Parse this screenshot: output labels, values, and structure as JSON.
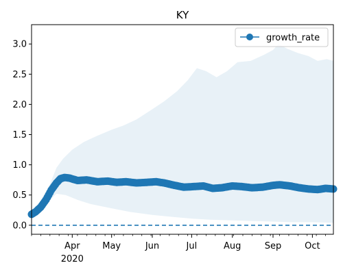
{
  "chart_data": {
    "type": "line",
    "title": "KY",
    "xlabel": "",
    "ylabel": "",
    "x_range": [
      "2020-03-01",
      "2020-10-17"
    ],
    "ylim": [
      -0.15,
      3.32
    ],
    "grid": false,
    "legend": {
      "location": "top-right",
      "entries": [
        "growth_rate"
      ]
    },
    "x_ticks": [
      {
        "date": "2020-04-01",
        "label": "Apr",
        "sublabel": "2020"
      },
      {
        "date": "2020-05-01",
        "label": "May",
        "sublabel": ""
      },
      {
        "date": "2020-06-01",
        "label": "Jun",
        "sublabel": ""
      },
      {
        "date": "2020-07-01",
        "label": "Jul",
        "sublabel": ""
      },
      {
        "date": "2020-08-01",
        "label": "Aug",
        "sublabel": ""
      },
      {
        "date": "2020-09-01",
        "label": "Sep",
        "sublabel": ""
      },
      {
        "date": "2020-10-01",
        "label": "Oct",
        "sublabel": ""
      }
    ],
    "y_ticks": [
      0.0,
      0.5,
      1.0,
      1.5,
      2.0,
      2.5,
      3.0
    ],
    "y_tick_labels": [
      "0.0",
      "0.5",
      "1.0",
      "1.5",
      "2.0",
      "2.5",
      "3.0"
    ],
    "reference_line": {
      "y": 0.0,
      "style": "dashed",
      "color": "#1f77b4"
    },
    "series": [
      {
        "name": "growth_rate",
        "color": "#1f77b4",
        "marker": "circle",
        "points": [
          [
            "2020-03-01",
            0.18
          ],
          [
            "2020-03-04",
            0.22
          ],
          [
            "2020-03-08",
            0.3
          ],
          [
            "2020-03-12",
            0.42
          ],
          [
            "2020-03-16",
            0.58
          ],
          [
            "2020-03-20",
            0.7
          ],
          [
            "2020-03-23",
            0.77
          ],
          [
            "2020-03-26",
            0.79
          ],
          [
            "2020-03-30",
            0.78
          ],
          [
            "2020-04-05",
            0.74
          ],
          [
            "2020-04-12",
            0.75
          ],
          [
            "2020-04-20",
            0.72
          ],
          [
            "2020-04-28",
            0.73
          ],
          [
            "2020-05-05",
            0.71
          ],
          [
            "2020-05-12",
            0.72
          ],
          [
            "2020-05-20",
            0.7
          ],
          [
            "2020-05-28",
            0.71
          ],
          [
            "2020-06-04",
            0.72
          ],
          [
            "2020-06-10",
            0.7
          ],
          [
            "2020-06-18",
            0.66
          ],
          [
            "2020-06-25",
            0.63
          ],
          [
            "2020-07-03",
            0.64
          ],
          [
            "2020-07-10",
            0.65
          ],
          [
            "2020-07-17",
            0.61
          ],
          [
            "2020-07-24",
            0.62
          ],
          [
            "2020-08-01",
            0.65
          ],
          [
            "2020-08-08",
            0.64
          ],
          [
            "2020-08-16",
            0.62
          ],
          [
            "2020-08-24",
            0.63
          ],
          [
            "2020-09-01",
            0.66
          ],
          [
            "2020-09-06",
            0.67
          ],
          [
            "2020-09-14",
            0.65
          ],
          [
            "2020-09-21",
            0.62
          ],
          [
            "2020-09-28",
            0.6
          ],
          [
            "2020-10-05",
            0.59
          ],
          [
            "2020-10-11",
            0.61
          ],
          [
            "2020-10-17",
            0.6
          ]
        ]
      }
    ],
    "band": {
      "color": "#1f77b4",
      "opacity": 0.1,
      "upper": [
        [
          "2020-03-01",
          0.19
        ],
        [
          "2020-03-08",
          0.4
        ],
        [
          "2020-03-15",
          0.68
        ],
        [
          "2020-03-20",
          0.95
        ],
        [
          "2020-03-25",
          1.1
        ],
        [
          "2020-04-01",
          1.25
        ],
        [
          "2020-04-10",
          1.38
        ],
        [
          "2020-04-20",
          1.48
        ],
        [
          "2020-05-01",
          1.58
        ],
        [
          "2020-05-10",
          1.65
        ],
        [
          "2020-05-20",
          1.75
        ],
        [
          "2020-06-01",
          1.92
        ],
        [
          "2020-06-10",
          2.05
        ],
        [
          "2020-06-20",
          2.22
        ],
        [
          "2020-06-28",
          2.4
        ],
        [
          "2020-07-05",
          2.6
        ],
        [
          "2020-07-12",
          2.55
        ],
        [
          "2020-07-20",
          2.45
        ],
        [
          "2020-07-28",
          2.55
        ],
        [
          "2020-08-05",
          2.7
        ],
        [
          "2020-08-15",
          2.72
        ],
        [
          "2020-08-25",
          2.82
        ],
        [
          "2020-09-01",
          2.9
        ],
        [
          "2020-09-05",
          3.0
        ],
        [
          "2020-09-12",
          2.92
        ],
        [
          "2020-09-20",
          2.85
        ],
        [
          "2020-09-28",
          2.8
        ],
        [
          "2020-10-05",
          2.72
        ],
        [
          "2020-10-12",
          2.75
        ],
        [
          "2020-10-17",
          2.72
        ]
      ],
      "lower": [
        [
          "2020-03-01",
          0.17
        ],
        [
          "2020-03-08",
          0.25
        ],
        [
          "2020-03-15",
          0.42
        ],
        [
          "2020-03-20",
          0.52
        ],
        [
          "2020-03-27",
          0.5
        ],
        [
          "2020-04-05",
          0.42
        ],
        [
          "2020-04-15",
          0.35
        ],
        [
          "2020-05-01",
          0.28
        ],
        [
          "2020-05-15",
          0.22
        ],
        [
          "2020-06-01",
          0.17
        ],
        [
          "2020-06-15",
          0.14
        ],
        [
          "2020-07-01",
          0.11
        ],
        [
          "2020-07-15",
          0.09
        ],
        [
          "2020-08-01",
          0.08
        ],
        [
          "2020-08-15",
          0.07
        ],
        [
          "2020-09-01",
          0.06
        ],
        [
          "2020-09-15",
          0.05
        ],
        [
          "2020-10-01",
          0.05
        ],
        [
          "2020-10-17",
          0.04
        ]
      ]
    }
  }
}
